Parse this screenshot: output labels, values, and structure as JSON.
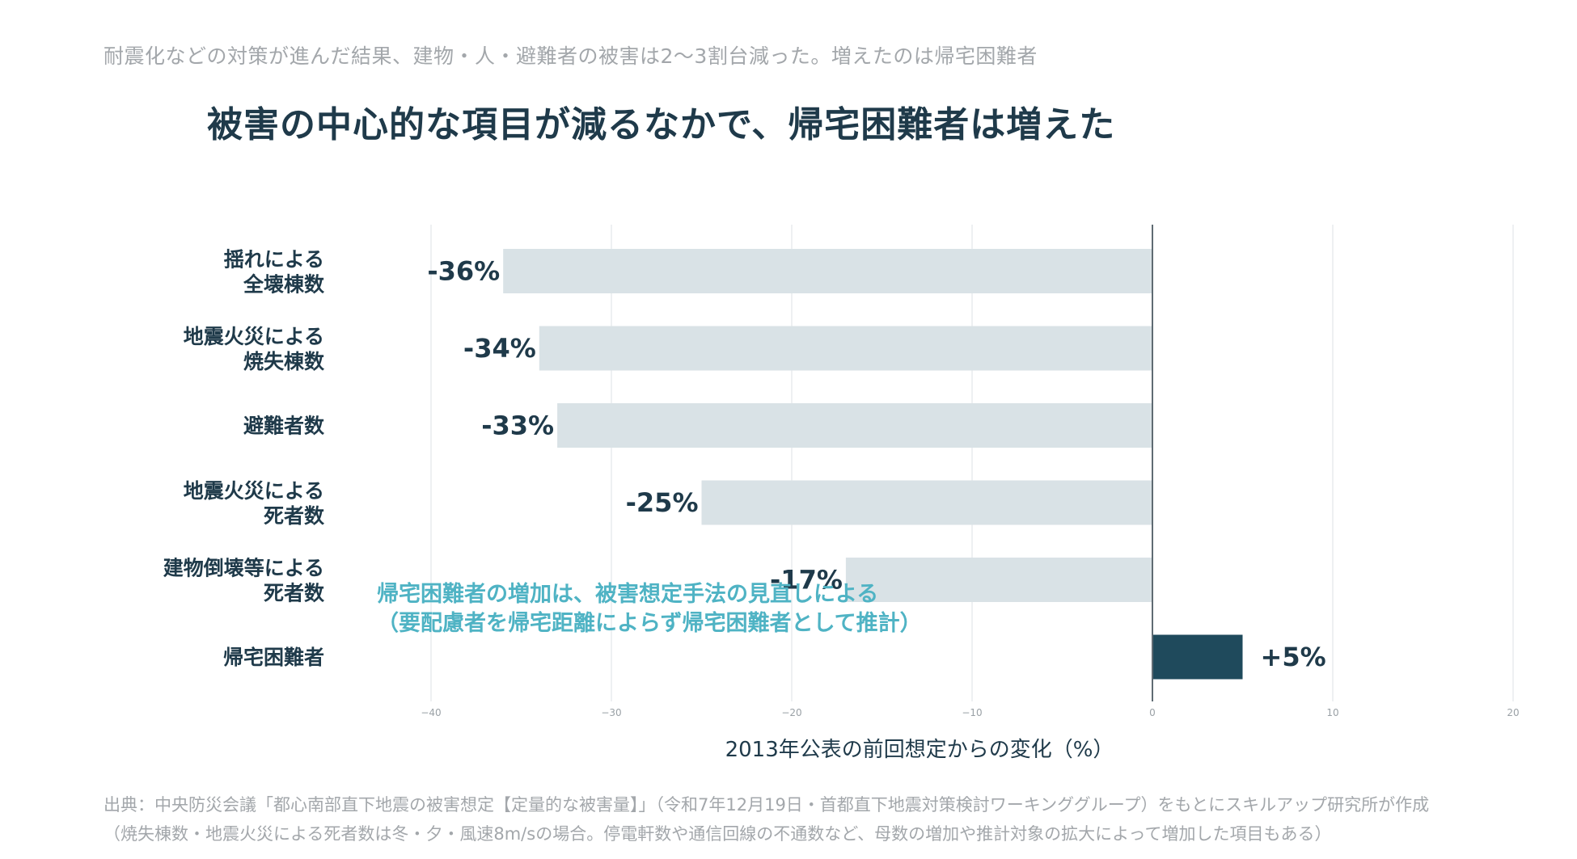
{
  "subtitle": "耐震化などの対策が進んだ結果、建物・人・避難者の被害は2〜3割台減った。増えたのは帰宅困難者",
  "title": "被害の中心的な項目が減るなかで、帰宅困難者は増えた",
  "annotation": {
    "line1": "帰宅困難者の増加は、被害想定手法の見直しによる",
    "line2": "（要配慮者を帰宅距離によらず帰宅困難者として推計）"
  },
  "source": {
    "line1": "出典：中央防災会議「都心南部直下地震の被害想定【定量的な被害量】」（令和7年12月19日・首都直下地震対策検討ワーキンググループ）をもとにスキルアップ研究所が作成",
    "line2": "（焼失棟数・地震火災による死者数は冬・夕・風速8m/sの場合。停電軒数や通信回線の不通数など、母数の増加や推計対象の拡大によって増加した項目もある）"
  },
  "colors": {
    "negative_bar": "#d9e2e6",
    "positive_bar": "#1f4a5c",
    "text_dark": "#1f3a4a",
    "annotation": "#4fb3c4",
    "grid": "#e9ecee",
    "zero_line": "#5f6b73",
    "tick": "#9aa1a6"
  },
  "chart_data": {
    "type": "bar",
    "orientation": "horizontal",
    "categories": [
      [
        "揺れによる",
        "全壊棟数"
      ],
      [
        "地震火災による",
        "焼失棟数"
      ],
      [
        "避難者数"
      ],
      [
        "地震火災による",
        "死者数"
      ],
      [
        "建物倒壊等による",
        "死者数"
      ],
      [
        "帰宅困難者"
      ]
    ],
    "values": [
      -36,
      -34,
      -33,
      -25,
      -17,
      5
    ],
    "value_labels": [
      "-36%",
      "-34%",
      "-33%",
      "-25%",
      "-17%",
      "+5%"
    ],
    "xlabel": "2013年公表の前回想定からの変化（%）",
    "ylabel": "",
    "xlim": [
      -40,
      20
    ],
    "ticks": [
      -40,
      -30,
      -20,
      -10,
      0,
      10,
      20
    ],
    "tick_labels": [
      "−40",
      "−30",
      "−20",
      "−10",
      "0",
      "10",
      "20"
    ],
    "grid": true
  }
}
